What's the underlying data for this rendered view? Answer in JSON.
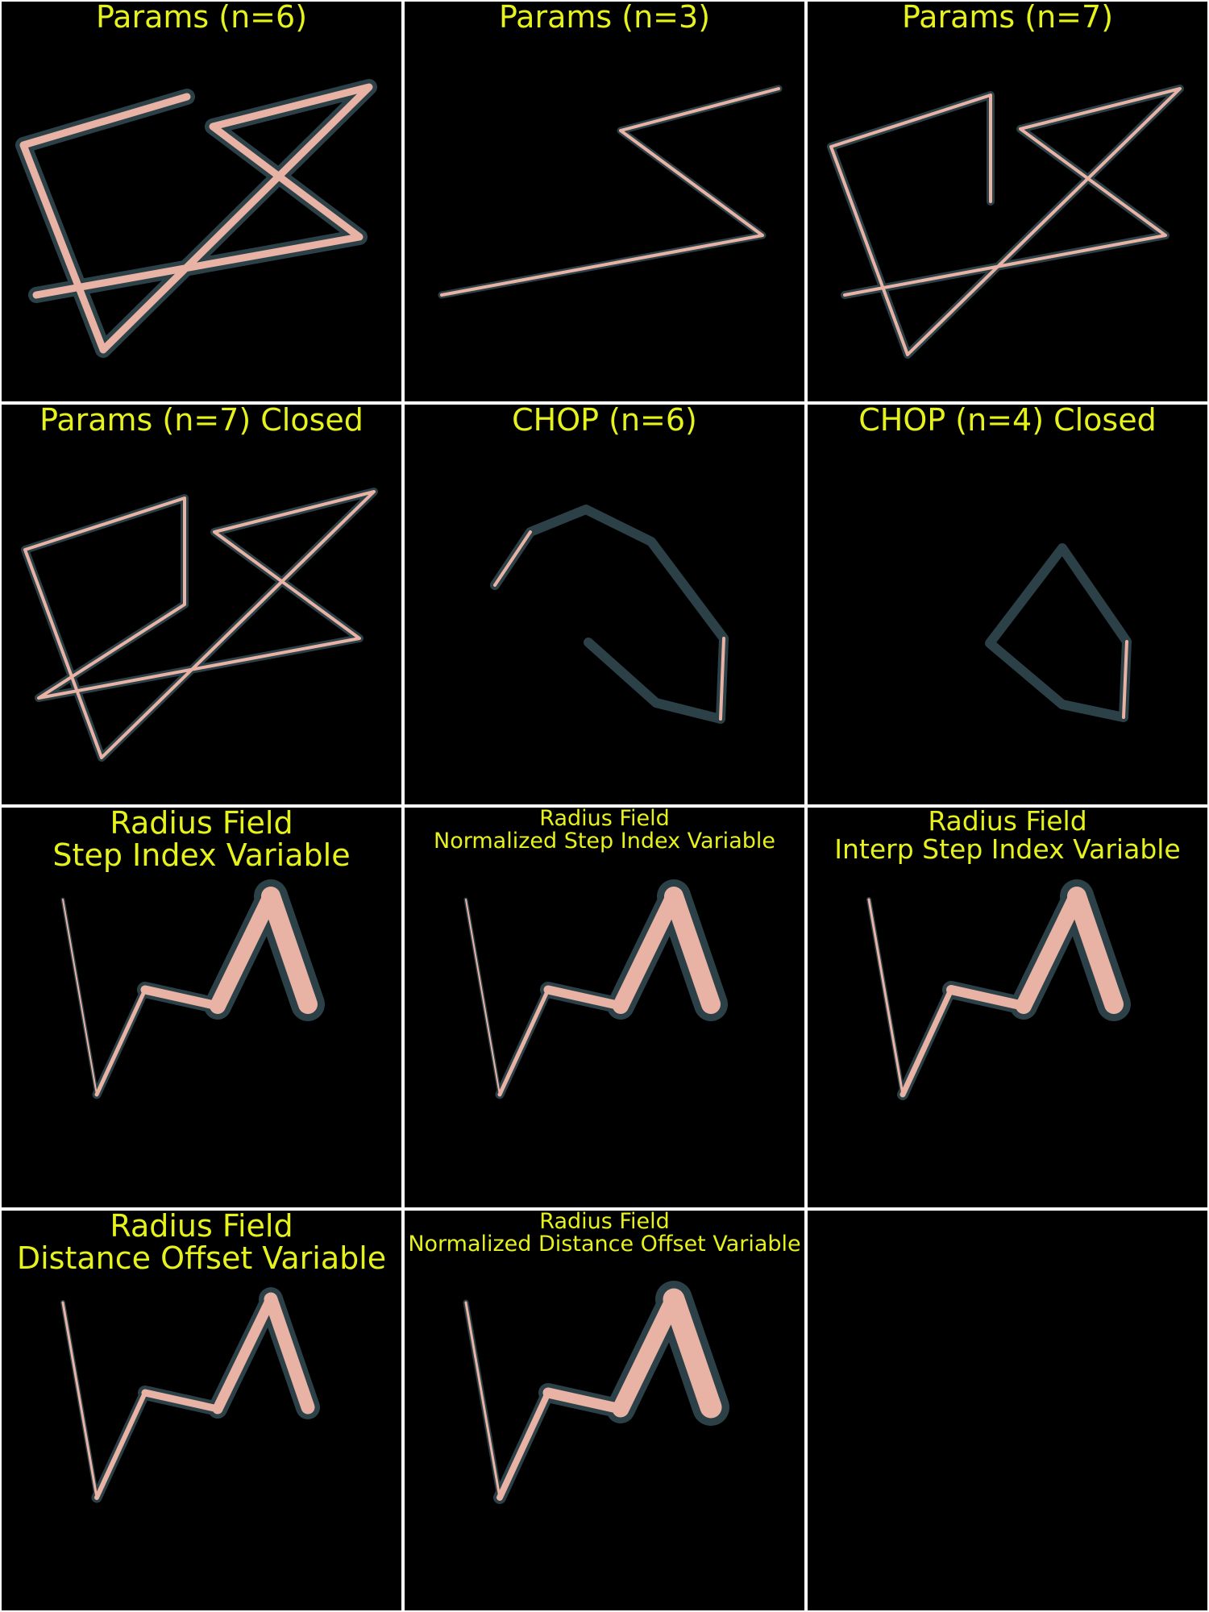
{
  "colors": {
    "title": "#e6f21c",
    "tube_highlight": "#e8b3a4",
    "tube_shadow": "#2c4047",
    "background": "#000000",
    "gutter": "#ffffff"
  },
  "panels": [
    {
      "title_lines": [
        "Params (n=6)"
      ]
    },
    {
      "title_lines": [
        "Params (n=3)"
      ]
    },
    {
      "title_lines": [
        "Params (n=7)"
      ]
    },
    {
      "title_lines": [
        "Params (n=7) Closed"
      ]
    },
    {
      "title_lines": [
        "CHOP (n=6)"
      ]
    },
    {
      "title_lines": [
        "CHOP (n=4) Closed"
      ]
    },
    {
      "title_lines": [
        "Radius Field",
        "Step Index Variable"
      ]
    },
    {
      "title_lines": [
        "Radius Field",
        "Normalized Step Index Variable"
      ]
    },
    {
      "title_lines": [
        "Radius Field",
        "Interp Step Index Variable"
      ]
    },
    {
      "title_lines": [
        "Radius Field",
        "Distance Offset Variable"
      ]
    },
    {
      "title_lines": [
        "Radius Field",
        "Normalized Distance Offset Variable"
      ]
    },
    {
      "title_lines": []
    }
  ]
}
